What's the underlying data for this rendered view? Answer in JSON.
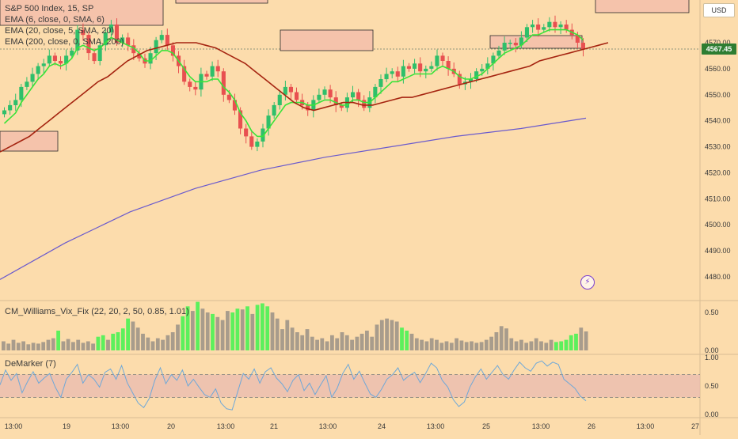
{
  "title": "S&P 500 Index, 15, SP",
  "currency": "USD",
  "last_price": "4567.45",
  "legend": [
    "EMA (6, close, 0, SMA, 6)",
    "EMA (20, close, 5, SMA, 20)",
    "EMA (200, close, 0, SMA, 200)"
  ],
  "colors": {
    "background": "#fcdcac",
    "up": "#2fbf6a",
    "down": "#e85050",
    "ema6": "#39e339",
    "ema20": "#a52410",
    "ema200": "#6a5acd",
    "vix_green": "#5cf05c",
    "vix_gray": "#a89c8c",
    "demarker_line": "#6fa8d8",
    "demarker_band": "#e8b8b0"
  },
  "alert_icon": "lightning-alert-icon",
  "chart_data": [
    {
      "type": "candlestick",
      "title": "S&P 500 Index, 15, SP",
      "ylim": [
        4475,
        4600
      ],
      "y_ticks": [
        "4480.00",
        "4490.00",
        "4500.00",
        "4510.00",
        "4520.00",
        "4530.00",
        "4540.00",
        "4550.00",
        "4560.00",
        "4570.00"
      ],
      "x_ticks": [
        "13:00",
        "19",
        "13:00",
        "20",
        "13:00",
        "21",
        "13:00",
        "24",
        "13:00",
        "25",
        "13:00",
        "26",
        "13:00",
        "27"
      ],
      "close": [
        4544,
        4546,
        4548,
        4553,
        4555,
        4558,
        4561,
        4562,
        4565,
        4563,
        4562,
        4565,
        4567,
        4575,
        4573,
        4566,
        4563,
        4569,
        4574,
        4577,
        4570,
        4572,
        4569,
        4566,
        4564,
        4562,
        4566,
        4571,
        4573,
        4569,
        4565,
        4561,
        4555,
        4553,
        4552,
        4558,
        4557,
        4561,
        4559,
        4550,
        4548,
        4544,
        4537,
        4534,
        4530,
        4532,
        4537,
        4542,
        4546,
        4550,
        4553,
        4551,
        4548,
        4546,
        4544,
        4548,
        4550,
        4552,
        4549,
        4546,
        4545,
        4549,
        4551,
        4548,
        4545,
        4549,
        4553,
        4556,
        4558,
        4559,
        4557,
        4561,
        4560,
        4562,
        4559,
        4560,
        4561,
        4565,
        4563,
        4560,
        4558,
        4554,
        4555,
        4556,
        4559,
        4560,
        4562,
        4565,
        4567,
        4570,
        4570,
        4569,
        4572,
        4576,
        4577,
        4575,
        4576,
        4578,
        4576,
        4577,
        4575,
        4573,
        4570,
        4567.45
      ],
      "ema6": [
        4539,
        4541,
        4543,
        4547,
        4550,
        4553,
        4556,
        4558,
        4561,
        4562,
        4561,
        4562,
        4564,
        4568,
        4569,
        4568,
        4567,
        4568,
        4570,
        4572,
        4571,
        4570,
        4569,
        4568,
        4566,
        4563,
        4563,
        4565,
        4567,
        4567,
        4566,
        4563,
        4560,
        4557,
        4555,
        4555,
        4555,
        4556,
        4556,
        4553,
        4551,
        4548,
        4543,
        4540,
        4536,
        4534,
        4534,
        4537,
        4540,
        4543,
        4546,
        4547,
        4547,
        4547,
        4546,
        4546,
        4547,
        4548,
        4548,
        4547,
        4546,
        4546,
        4548,
        4548,
        4547,
        4547,
        4549,
        4551,
        4553,
        4555,
        4555,
        4556,
        4557,
        4558,
        4558,
        4558,
        4558,
        4560,
        4561,
        4560,
        4559,
        4557,
        4556,
        4556,
        4557,
        4558,
        4560,
        4562,
        4564,
        4566,
        4567,
        4568,
        4569,
        4571,
        4573,
        4573,
        4574,
        4575,
        4575,
        4575,
        4575,
        4574,
        4573,
        4571
      ],
      "ema20": [
        4528,
        4530,
        4532,
        4534,
        4537,
        4540,
        4543,
        4546,
        4549,
        4552,
        4555,
        4557,
        4560,
        4563,
        4565,
        4567,
        4568,
        4569,
        4570,
        4570,
        4570,
        4569,
        4568,
        4566,
        4564,
        4562,
        4559,
        4556,
        4553,
        4550,
        4547,
        4545,
        4544,
        4545,
        4546,
        4547,
        4547,
        4546,
        4546,
        4547,
        4548,
        4549,
        4549,
        4550,
        4551,
        4552,
        4553,
        4554,
        4555,
        4556,
        4557,
        4558,
        4559,
        4560,
        4561,
        4563,
        4564,
        4565,
        4566,
        4567,
        4568,
        4569,
        4570
      ],
      "ema200": [
        4479,
        4493,
        4505,
        4514,
        4521,
        4526,
        4530,
        4534,
        4537,
        4541
      ],
      "zones_note": "supply/demand rectangles drawn as outlined boxes"
    },
    {
      "type": "bar",
      "title": "CM_Williams_Vix_Fix (22, 20, 2, 50, 0.85, 1.01)",
      "ylim": [
        0,
        0.75
      ],
      "y_ticks": [
        "0.50",
        "0.00"
      ],
      "values": [
        0.12,
        0.09,
        0.14,
        0.1,
        0.12,
        0.08,
        0.1,
        0.09,
        0.11,
        0.14,
        0.16,
        0.26,
        0.12,
        0.15,
        0.11,
        0.14,
        0.1,
        0.12,
        0.09,
        0.18,
        0.2,
        0.14,
        0.22,
        0.24,
        0.29,
        0.42,
        0.38,
        0.3,
        0.22,
        0.17,
        0.12,
        0.16,
        0.14,
        0.2,
        0.24,
        0.34,
        0.45,
        0.58,
        0.52,
        0.64,
        0.55,
        0.5,
        0.48,
        0.44,
        0.4,
        0.52,
        0.5,
        0.55,
        0.54,
        0.58,
        0.48,
        0.6,
        0.62,
        0.58,
        0.5,
        0.42,
        0.28,
        0.4,
        0.3,
        0.24,
        0.2,
        0.28,
        0.18,
        0.14,
        0.16,
        0.12,
        0.2,
        0.16,
        0.24,
        0.2,
        0.14,
        0.18,
        0.22,
        0.26,
        0.18,
        0.34,
        0.4,
        0.42,
        0.4,
        0.38,
        0.3,
        0.26,
        0.22,
        0.16,
        0.14,
        0.12,
        0.16,
        0.14,
        0.1,
        0.12,
        0.1,
        0.16,
        0.13,
        0.11,
        0.12,
        0.1,
        0.11,
        0.14,
        0.18,
        0.24,
        0.32,
        0.29,
        0.16,
        0.12,
        0.14,
        0.1,
        0.12,
        0.16,
        0.12,
        0.1,
        0.14,
        0.11,
        0.12,
        0.14,
        0.2,
        0.22,
        0.3,
        0.25
      ],
      "highlighted": [
        11,
        19,
        20,
        22,
        23,
        24,
        25,
        36,
        37,
        39,
        42,
        46,
        47,
        49,
        51,
        52,
        53,
        80,
        81,
        111,
        112,
        113,
        114,
        115
      ]
    },
    {
      "type": "line",
      "title": "DeMarker (7)",
      "ylim": [
        0,
        1
      ],
      "y_ticks": [
        "1.00",
        "0.50",
        "0.00"
      ],
      "bands": [
        0.3,
        0.7
      ],
      "values": [
        0.52,
        0.78,
        0.6,
        0.72,
        0.38,
        0.58,
        0.75,
        0.55,
        0.64,
        0.72,
        0.48,
        0.3,
        0.62,
        0.74,
        0.88,
        0.55,
        0.7,
        0.62,
        0.48,
        0.74,
        0.8,
        0.62,
        0.86,
        0.56,
        0.38,
        0.2,
        0.12,
        0.28,
        0.6,
        0.82,
        0.54,
        0.7,
        0.6,
        0.78,
        0.5,
        0.62,
        0.48,
        0.35,
        0.3,
        0.45,
        0.2,
        0.1,
        0.08,
        0.4,
        0.72,
        0.62,
        0.8,
        0.55,
        0.75,
        0.82,
        0.64,
        0.54,
        0.4,
        0.6,
        0.7,
        0.42,
        0.55,
        0.35,
        0.52,
        0.68,
        0.3,
        0.46,
        0.72,
        0.88,
        0.62,
        0.76,
        0.55,
        0.36,
        0.3,
        0.44,
        0.62,
        0.7,
        0.82,
        0.6,
        0.68,
        0.74,
        0.56,
        0.72,
        0.9,
        0.82,
        0.6,
        0.48,
        0.26,
        0.14,
        0.22,
        0.48,
        0.66,
        0.8,
        0.62,
        0.74,
        0.86,
        0.7,
        0.62,
        0.78,
        0.92,
        0.82,
        0.76,
        0.9,
        0.94,
        0.85,
        0.92,
        0.88,
        0.62,
        0.54,
        0.46,
        0.32,
        0.24
      ]
    }
  ]
}
